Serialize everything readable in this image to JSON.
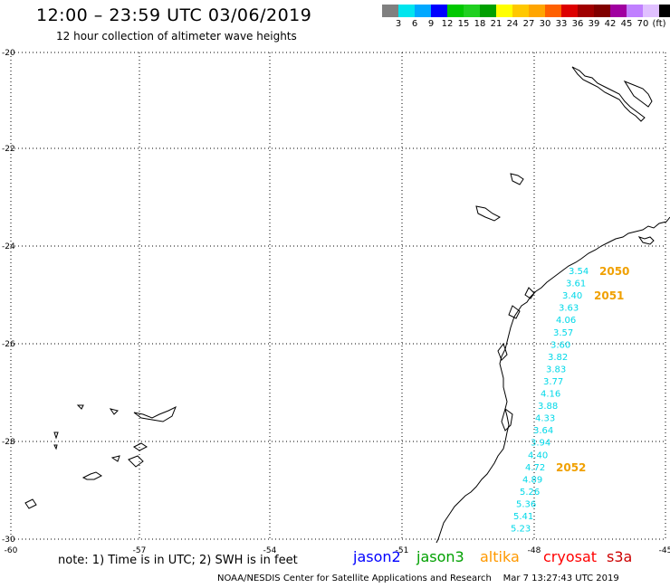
{
  "header": {
    "title": "12:00 – 23:59 UTC 03/06/2019",
    "subtitle": "12 hour collection of altimeter wave heights"
  },
  "colorbar": {
    "colors": [
      "#808080",
      "#00e5ee",
      "#00a8ff",
      "#0000ff",
      "#00c800",
      "#20d020",
      "#00a000",
      "#ffff00",
      "#ffc800",
      "#ffa500",
      "#ff6000",
      "#dd0000",
      "#a00000",
      "#800000",
      "#a000a0",
      "#c080ff",
      "#e0c0ff",
      "#000000"
    ],
    "labels": [
      "3",
      "6",
      "9",
      "12",
      "15",
      "18",
      "21",
      "24",
      "27",
      "30",
      "33",
      "36",
      "39",
      "42",
      "45",
      "70",
      "(ft)"
    ]
  },
  "map": {
    "lat_ticks": [
      "-20",
      "-22",
      "-24",
      "-26",
      "-28",
      "-30"
    ],
    "lon_ticks": [
      "-60",
      "-57",
      "-54",
      "-51",
      "-48",
      "-45"
    ],
    "swh_values": [
      "3.54",
      "3.61",
      "3.40",
      "3.63",
      "4.06",
      "3.57",
      "3.60",
      "3.82",
      "3.83",
      "3.77",
      "4.16",
      "3.88",
      "4.33",
      "3.64",
      "3.94",
      "4.40",
      "4.72",
      "4.89",
      "5.26",
      "5.36",
      "5.41",
      "5.23"
    ],
    "time_labels": [
      "2050",
      "2051",
      "2052"
    ],
    "colors": {
      "swh": "#00d8e8",
      "time": "#f0a000",
      "coast": "#000000",
      "grid": "#000000"
    }
  },
  "note": {
    "text": "note: 1) Time is in UTC; 2) SWH is in feet",
    "satellites": [
      {
        "name": "jason2",
        "color": "#0000ff"
      },
      {
        "name": "jason3",
        "color": "#00a000"
      },
      {
        "name": "altika",
        "color": "#ff9900"
      },
      {
        "name": "cryosat",
        "color": "#ff0000"
      },
      {
        "name": "s3a",
        "color": "#cc0000"
      }
    ]
  },
  "footer": {
    "credit": "NOAA/NESDIS Center for Satellite Applications and Research",
    "timestamp": "Mar  7 13:27:43 UTC 2019"
  }
}
